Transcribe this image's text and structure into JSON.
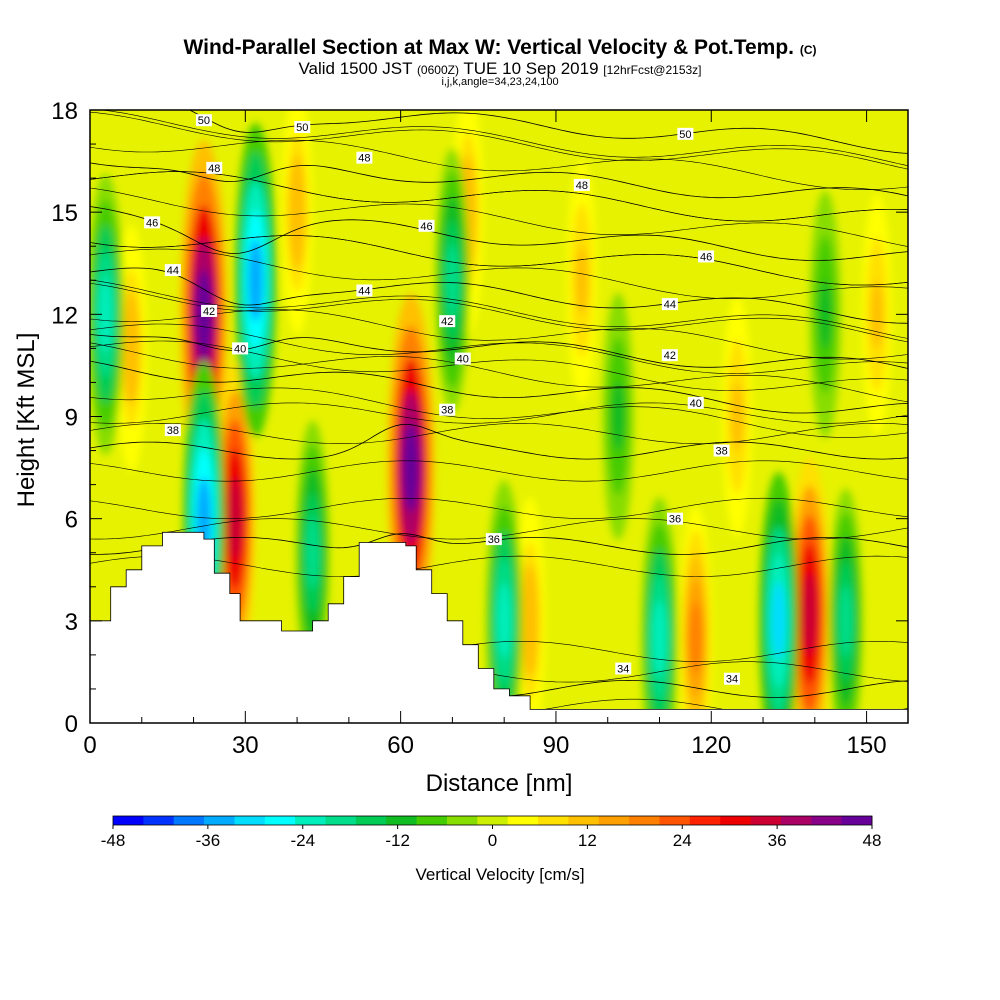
{
  "header": {
    "title_main": "Wind-Parallel Section at Max W: Vertical Velocity & Pot.Temp.",
    "title_unit": "(C)",
    "valid_prefix": "Valid 1500 JST",
    "valid_utc": "(0600Z)",
    "valid_date": "TUE 10 Sep 2019",
    "forecast": "[12hrFcst@2153z]",
    "indices": "i,j,k,angle=34,23,24,100"
  },
  "chart_data": {
    "type": "heatmap",
    "xlabel": "Distance [nm]",
    "ylabel": "Height [Kft MSL]",
    "xlim": [
      0,
      158
    ],
    "ylim": [
      0,
      18
    ],
    "x_ticks": [
      0,
      30,
      60,
      90,
      120,
      150
    ],
    "x_tick_labels": [
      "0",
      "30",
      "60",
      "90",
      "120",
      "150"
    ],
    "y_ticks": [
      0,
      3,
      6,
      9,
      12,
      15,
      18
    ],
    "y_tick_labels": [
      "0",
      "3",
      "6",
      "9",
      "12",
      "15",
      "18"
    ],
    "colorbar": {
      "title": "Vertical Velocity [cm/s]",
      "min": -48,
      "max": 48,
      "labels": [
        "-48",
        "-36",
        "-24",
        "-12",
        "0",
        "12",
        "24",
        "36",
        "48"
      ],
      "colors": [
        "#0000ff",
        "#0033ff",
        "#0077ff",
        "#00aaff",
        "#00ddff",
        "#00ffff",
        "#00eebb",
        "#00dd88",
        "#00cc55",
        "#11bb22",
        "#44cc00",
        "#88dd00",
        "#ccee00",
        "#ffff00",
        "#ffe000",
        "#ffc000",
        "#ffa000",
        "#ff8000",
        "#ff5500",
        "#ff2200",
        "#ee0000",
        "#cc0033",
        "#aa0066",
        "#880088",
        "#660099"
      ]
    },
    "updrafts": [
      {
        "x": 22,
        "y": 12.0,
        "w": 48
      },
      {
        "x": 28,
        "y": 6.0,
        "w": 36
      },
      {
        "x": 62,
        "y": 7.5,
        "w": 48
      },
      {
        "x": 139,
        "y": 3.2,
        "w": 36
      },
      {
        "x": 117,
        "y": 2.5,
        "w": 18
      },
      {
        "x": 8,
        "y": 11.0,
        "w": 12
      },
      {
        "x": 40,
        "y": 15.0,
        "w": 12
      },
      {
        "x": 73,
        "y": 15.0,
        "w": 12
      },
      {
        "x": 95,
        "y": 13.0,
        "w": 10
      },
      {
        "x": 125,
        "y": 9.0,
        "w": 10
      },
      {
        "x": 152,
        "y": 12.0,
        "w": 10
      },
      {
        "x": 85,
        "y": 3.0,
        "w": 12
      }
    ],
    "downdrafts": [
      {
        "x": 32,
        "y": 13.0,
        "w": -36
      },
      {
        "x": 22,
        "y": 6.0,
        "w": -36
      },
      {
        "x": 3,
        "y": 12.0,
        "w": -24
      },
      {
        "x": 43,
        "y": 5.0,
        "w": -18
      },
      {
        "x": 70,
        "y": 13.0,
        "w": -18
      },
      {
        "x": 80,
        "y": 3.0,
        "w": -24
      },
      {
        "x": 110,
        "y": 2.5,
        "w": -24
      },
      {
        "x": 133,
        "y": 3.0,
        "w": -30
      },
      {
        "x": 146,
        "y": 3.0,
        "w": -18
      },
      {
        "x": 102,
        "y": 9.0,
        "w": -12
      },
      {
        "x": 142,
        "y": 12.0,
        "w": -12
      }
    ],
    "terrain_top": [
      [
        0,
        3.0
      ],
      [
        4,
        4.0
      ],
      [
        7,
        4.5
      ],
      [
        10,
        5.2
      ],
      [
        14,
        5.6
      ],
      [
        19,
        5.6
      ],
      [
        22,
        5.4
      ],
      [
        24,
        4.4
      ],
      [
        27,
        3.8
      ],
      [
        29,
        3.0
      ],
      [
        33,
        3.0
      ],
      [
        37,
        2.7
      ],
      [
        40,
        2.7
      ],
      [
        43,
        3.0
      ],
      [
        46,
        3.5
      ],
      [
        49,
        4.3
      ],
      [
        52,
        5.3
      ],
      [
        58,
        5.3
      ],
      [
        61,
        5.2
      ],
      [
        63,
        4.5
      ],
      [
        66,
        3.8
      ],
      [
        69,
        3.0
      ],
      [
        72,
        2.3
      ],
      [
        75,
        1.6
      ],
      [
        78,
        1.0
      ],
      [
        81,
        0.8
      ],
      [
        85,
        0.4
      ],
      [
        150,
        0.4
      ],
      [
        158,
        0.4
      ]
    ],
    "isentropes": {
      "levels_C": [
        34,
        36,
        38,
        40,
        42,
        44,
        46,
        48,
        50
      ],
      "labels": [
        {
          "text": "50",
          "x": 22,
          "y": 17.7
        },
        {
          "text": "50",
          "x": 41,
          "y": 17.5
        },
        {
          "text": "50",
          "x": 115,
          "y": 17.3
        },
        {
          "text": "48",
          "x": 24,
          "y": 16.3
        },
        {
          "text": "48",
          "x": 53,
          "y": 16.6
        },
        {
          "text": "48",
          "x": 95,
          "y": 15.8
        },
        {
          "text": "46",
          "x": 12,
          "y": 14.7
        },
        {
          "text": "46",
          "x": 65,
          "y": 14.6
        },
        {
          "text": "46",
          "x": 119,
          "y": 13.7
        },
        {
          "text": "44",
          "x": 16,
          "y": 13.3
        },
        {
          "text": "44",
          "x": 53,
          "y": 12.7
        },
        {
          "text": "44",
          "x": 112,
          "y": 12.3
        },
        {
          "text": "42",
          "x": 23,
          "y": 12.1
        },
        {
          "text": "42",
          "x": 69,
          "y": 11.8
        },
        {
          "text": "42",
          "x": 112,
          "y": 10.8
        },
        {
          "text": "40",
          "x": 29,
          "y": 11.0
        },
        {
          "text": "40",
          "x": 72,
          "y": 10.7
        },
        {
          "text": "40",
          "x": 117,
          "y": 9.4
        },
        {
          "text": "38",
          "x": 16,
          "y": 8.6
        },
        {
          "text": "38",
          "x": 69,
          "y": 9.2
        },
        {
          "text": "38",
          "x": 122,
          "y": 8.0
        },
        {
          "text": "36",
          "x": 78,
          "y": 5.4
        },
        {
          "text": "36",
          "x": 113,
          "y": 6.0
        },
        {
          "text": "34",
          "x": 103,
          "y": 1.6
        },
        {
          "text": "34",
          "x": 124,
          "y": 1.3
        }
      ]
    }
  }
}
